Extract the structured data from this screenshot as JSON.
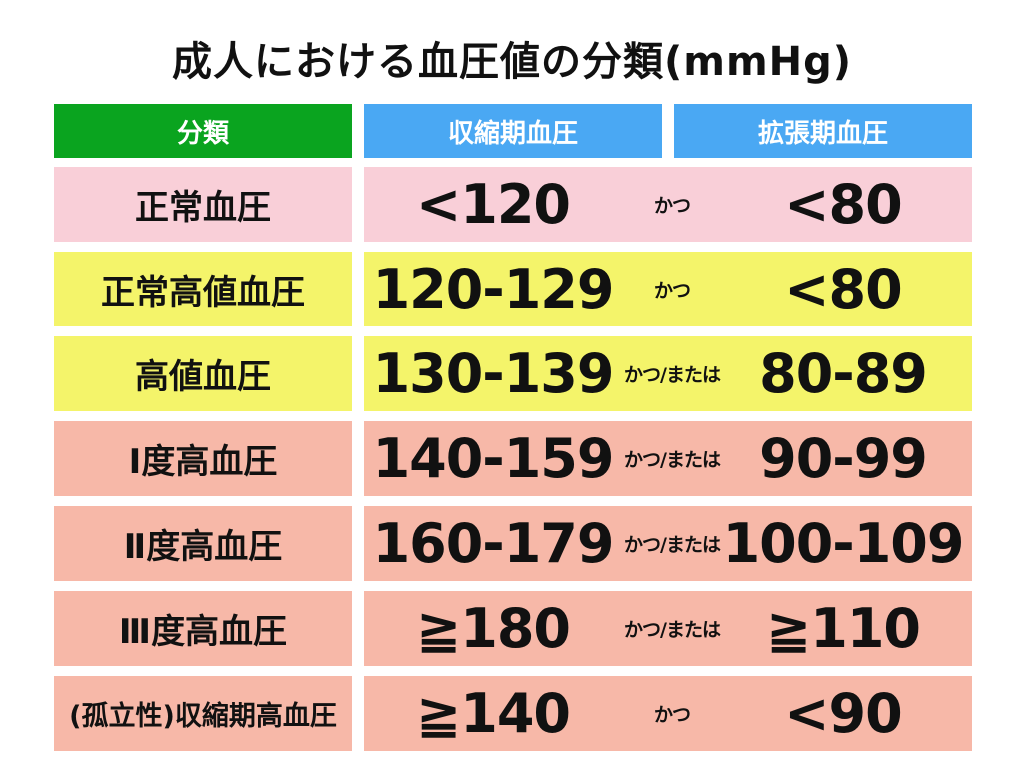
{
  "title": "成人における血圧値の分類(mmHg)",
  "headers": {
    "category": "分類",
    "systolic": "収縮期血圧",
    "diastolic": "拡張期血圧"
  },
  "colors": {
    "header_category": "#0aa41f",
    "header_pressure": "#4aa8f3",
    "pink": "#f9cfd8",
    "yellow": "#f4f46a",
    "salmon": "#f7b8a8"
  },
  "rows": [
    {
      "category": "正常血圧",
      "systolic": "<120",
      "conjunction": "かつ",
      "diastolic": "<80",
      "color": "pink"
    },
    {
      "category": "正常高値血圧",
      "systolic": "120-129",
      "conjunction": "かつ",
      "diastolic": "<80",
      "color": "yellow"
    },
    {
      "category": "高値血圧",
      "systolic": "130-139",
      "conjunction": "かつ/または",
      "diastolic": "80-89",
      "color": "yellow"
    },
    {
      "category": "Ⅰ度高血圧",
      "systolic": "140-159",
      "conjunction": "かつ/または",
      "diastolic": "90-99",
      "color": "salmon"
    },
    {
      "category": "Ⅱ度高血圧",
      "systolic": "160-179",
      "conjunction": "かつ/または",
      "diastolic": "100-109",
      "color": "salmon"
    },
    {
      "category": "Ⅲ度高血圧",
      "systolic": "≧180",
      "conjunction": "かつ/または",
      "diastolic": "≧110",
      "color": "salmon"
    },
    {
      "category": "(孤立性)収縮期高血圧",
      "systolic": "≧140",
      "conjunction": "かつ",
      "diastolic": "<90",
      "color": "salmon"
    }
  ]
}
